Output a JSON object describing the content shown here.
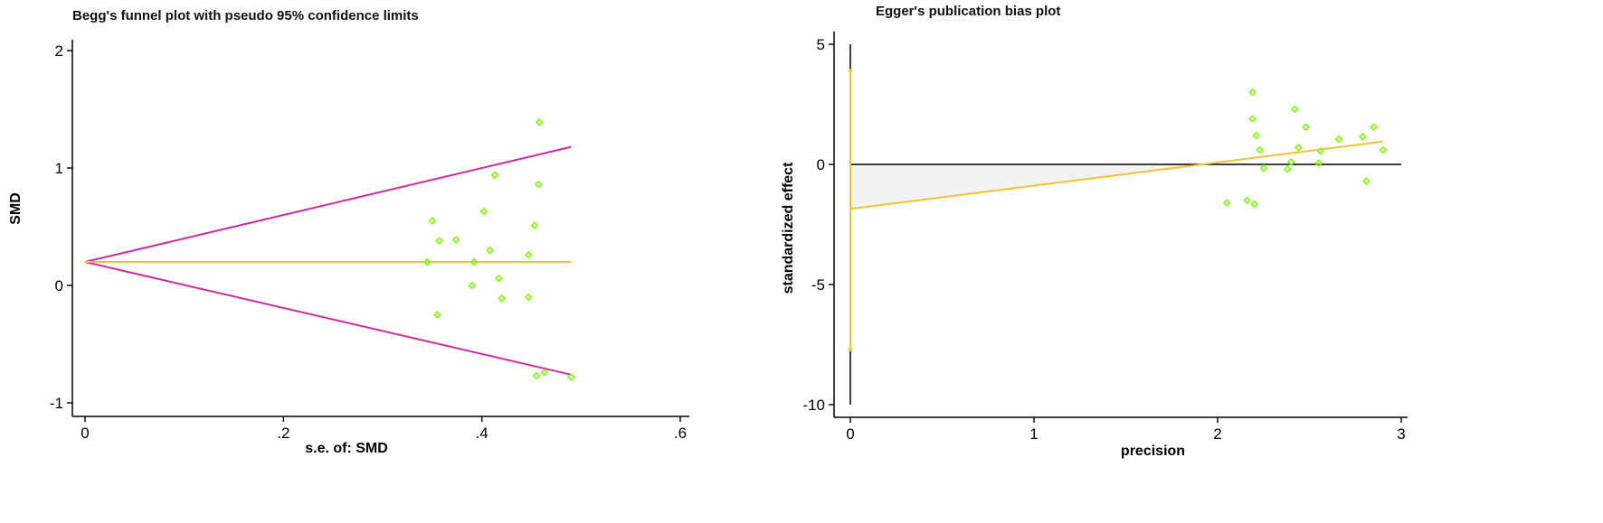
{
  "chart_data": [
    {
      "type": "scatter",
      "title": "Begg's funnel plot with pseudo 95% confidence limits",
      "xlabel": "s.e. of: SMD",
      "ylabel": "SMD",
      "xlim": [
        0,
        0.6
      ],
      "ylim": [
        -1,
        2
      ],
      "xticks": [
        {
          "v": 0,
          "label": "0"
        },
        {
          "v": 0.2,
          "label": ".2"
        },
        {
          "v": 0.4,
          "label": ".4"
        },
        {
          "v": 0.6,
          "label": ".6"
        }
      ],
      "yticks": [
        {
          "v": -1,
          "label": "-1"
        },
        {
          "v": 0,
          "label": "0"
        },
        {
          "v": 1,
          "label": "1"
        },
        {
          "v": 2,
          "label": "2"
        }
      ],
      "pooled_estimate": 0.2,
      "pseudo_ci_upper": [
        [
          0,
          0.2
        ],
        [
          0.49,
          1.18
        ]
      ],
      "pseudo_ci_lower": [
        [
          0,
          0.2
        ],
        [
          0.49,
          -0.76
        ]
      ],
      "points": [
        [
          0.345,
          0.2
        ],
        [
          0.35,
          0.55
        ],
        [
          0.355,
          -0.25
        ],
        [
          0.357,
          0.38
        ],
        [
          0.374,
          0.39
        ],
        [
          0.39,
          0.0
        ],
        [
          0.392,
          0.2
        ],
        [
          0.402,
          0.63
        ],
        [
          0.408,
          0.3
        ],
        [
          0.413,
          0.94
        ],
        [
          0.417,
          0.06
        ],
        [
          0.42,
          -0.11
        ],
        [
          0.447,
          0.26
        ],
        [
          0.447,
          -0.1
        ],
        [
          0.453,
          0.51
        ],
        [
          0.455,
          -0.77
        ],
        [
          0.457,
          0.86
        ],
        [
          0.458,
          1.39
        ],
        [
          0.463,
          -0.74
        ],
        [
          0.49,
          -0.78
        ]
      ],
      "colors": {
        "points": "#7CFC00",
        "funnel": "#CC2D9E",
        "pooled": "#F2C230"
      }
    },
    {
      "type": "scatter",
      "title": "Egger's publication bias plot",
      "xlabel": "precision",
      "ylabel": "standardized effect",
      "xlim": [
        0,
        3
      ],
      "ylim": [
        -10,
        5
      ],
      "xticks": [
        {
          "v": 0,
          "label": "0"
        },
        {
          "v": 1,
          "label": "1"
        },
        {
          "v": 2,
          "label": "2"
        },
        {
          "v": 3,
          "label": "3"
        }
      ],
      "yticks": [
        {
          "v": -10,
          "label": "-10"
        },
        {
          "v": -5,
          "label": "-5"
        },
        {
          "v": 0,
          "label": "0"
        },
        {
          "v": 5,
          "label": "5"
        }
      ],
      "regression_line": [
        [
          0,
          -1.85
        ],
        [
          2.9,
          0.95
        ]
      ],
      "intercept_ci": [
        -7.7,
        3.9
      ],
      "points": [
        [
          2.05,
          -1.6
        ],
        [
          2.16,
          -1.5
        ],
        [
          2.19,
          3.0
        ],
        [
          2.19,
          1.9
        ],
        [
          2.2,
          -1.65
        ],
        [
          2.21,
          1.2
        ],
        [
          2.23,
          0.6
        ],
        [
          2.25,
          -0.15
        ],
        [
          2.38,
          -0.2
        ],
        [
          2.4,
          0.1
        ],
        [
          2.42,
          2.3
        ],
        [
          2.44,
          0.7
        ],
        [
          2.48,
          1.55
        ],
        [
          2.55,
          0.05
        ],
        [
          2.56,
          0.55
        ],
        [
          2.66,
          1.05
        ],
        [
          2.79,
          1.15
        ],
        [
          2.81,
          -0.7
        ],
        [
          2.85,
          1.55
        ],
        [
          2.9,
          0.6
        ]
      ],
      "colors": {
        "points": "#7CFC00",
        "regression": "#F2C230",
        "zero_line": "#000000"
      }
    }
  ]
}
